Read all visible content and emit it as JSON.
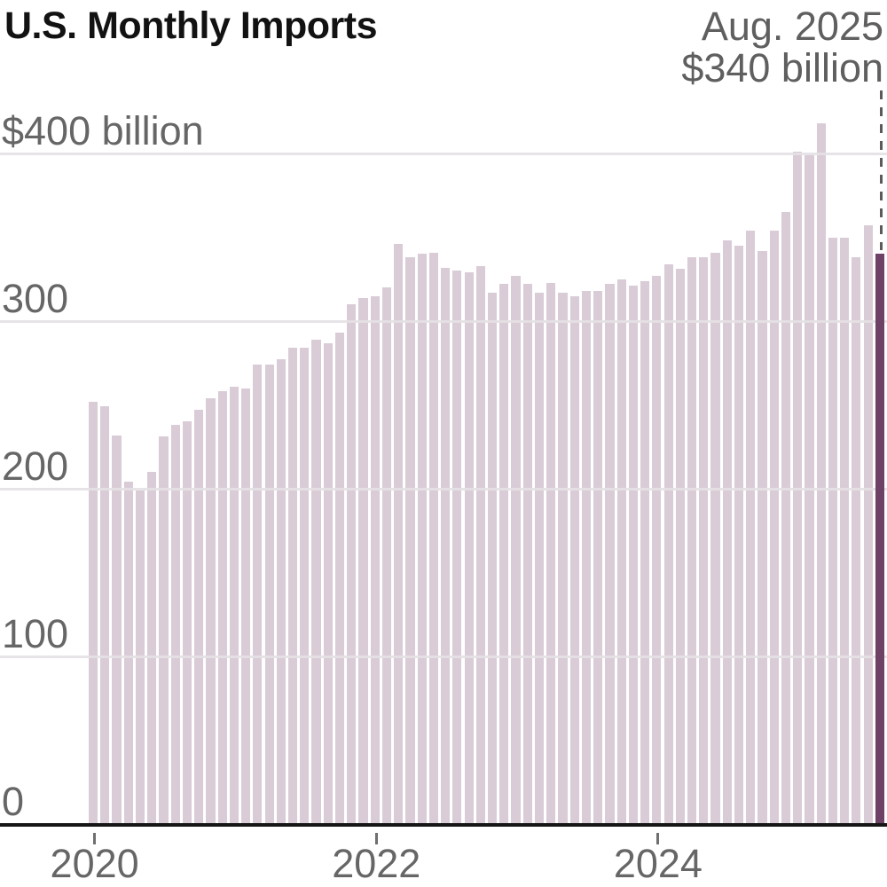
{
  "title": "U.S. Monthly Imports",
  "annotation": {
    "line1": "Aug. 2025",
    "line2": "$340 billion"
  },
  "chart_data": {
    "type": "bar",
    "title": "U.S. Monthly Imports",
    "unit": "billions of U.S. dollars",
    "ylim": [
      0,
      440
    ],
    "grid": true,
    "categories": [
      "Jan 2020",
      "Feb 2020",
      "Mar 2020",
      "Apr 2020",
      "May 2020",
      "Jun 2020",
      "Jul 2020",
      "Aug 2020",
      "Sep 2020",
      "Oct 2020",
      "Nov 2020",
      "Dec 2020",
      "Jan 2021",
      "Feb 2021",
      "Mar 2021",
      "Apr 2021",
      "May 2021",
      "Jun 2021",
      "Jul 2021",
      "Aug 2021",
      "Sep 2021",
      "Oct 2021",
      "Nov 2021",
      "Dec 2021",
      "Jan 2022",
      "Feb 2022",
      "Mar 2022",
      "Apr 2022",
      "May 2022",
      "Jun 2022",
      "Jul 2022",
      "Aug 2022",
      "Sep 2022",
      "Oct 2022",
      "Nov 2022",
      "Dec 2022",
      "Jan 2023",
      "Feb 2023",
      "Mar 2023",
      "Apr 2023",
      "May 2023",
      "Jun 2023",
      "Jul 2023",
      "Aug 2023",
      "Sep 2023",
      "Oct 2023",
      "Nov 2023",
      "Dec 2023",
      "Jan 2024",
      "Feb 2024",
      "Mar 2024",
      "Apr 2024",
      "May 2024",
      "Jun 2024",
      "Jul 2024",
      "Aug 2024",
      "Sep 2024",
      "Oct 2024",
      "Nov 2024",
      "Dec 2024",
      "Jan 2025",
      "Feb 2025",
      "Mar 2025",
      "Apr 2025",
      "May 2025",
      "Jun 2025",
      "Jul 2025",
      "Aug 2025"
    ],
    "values": [
      252,
      249,
      232,
      204,
      199,
      210,
      231,
      238,
      240,
      247,
      254,
      258,
      261,
      260,
      274,
      274,
      277,
      284,
      284,
      289,
      287,
      293,
      310,
      314,
      315,
      320,
      346,
      338,
      340,
      341,
      332,
      330,
      329,
      333,
      317,
      322,
      327,
      322,
      317,
      323,
      317,
      315,
      318,
      318,
      322,
      325,
      321,
      324,
      327,
      334,
      331,
      338,
      338,
      341,
      348,
      345,
      354,
      342,
      354,
      365,
      401,
      399,
      418,
      350,
      350,
      338,
      357,
      340
    ],
    "highlight_index": 67,
    "highlight_label": "Aug. 2025 $340 billion",
    "y_ticks": [
      {
        "value": 0,
        "label": "0"
      },
      {
        "value": 100,
        "label": "100"
      },
      {
        "value": 200,
        "label": "200"
      },
      {
        "value": 300,
        "label": "300"
      },
      {
        "value": 400,
        "label": "$400 billion"
      }
    ],
    "x_ticks": [
      {
        "label": "2020",
        "month_index": 0
      },
      {
        "label": "2022",
        "month_index": 24
      },
      {
        "label": "2024",
        "month_index": 48
      }
    ],
    "legend": "none",
    "colors": {
      "bar": "#d9ccd7",
      "highlight_bar": "#6e4167",
      "grid": "#e4e1e4",
      "axis": "#161616",
      "tick": "#6f6f6f",
      "label_text": "#666666",
      "annotation_text": "#5f5f5f",
      "dashed_line": "#5a5a5a",
      "title_text": "#121212"
    }
  }
}
